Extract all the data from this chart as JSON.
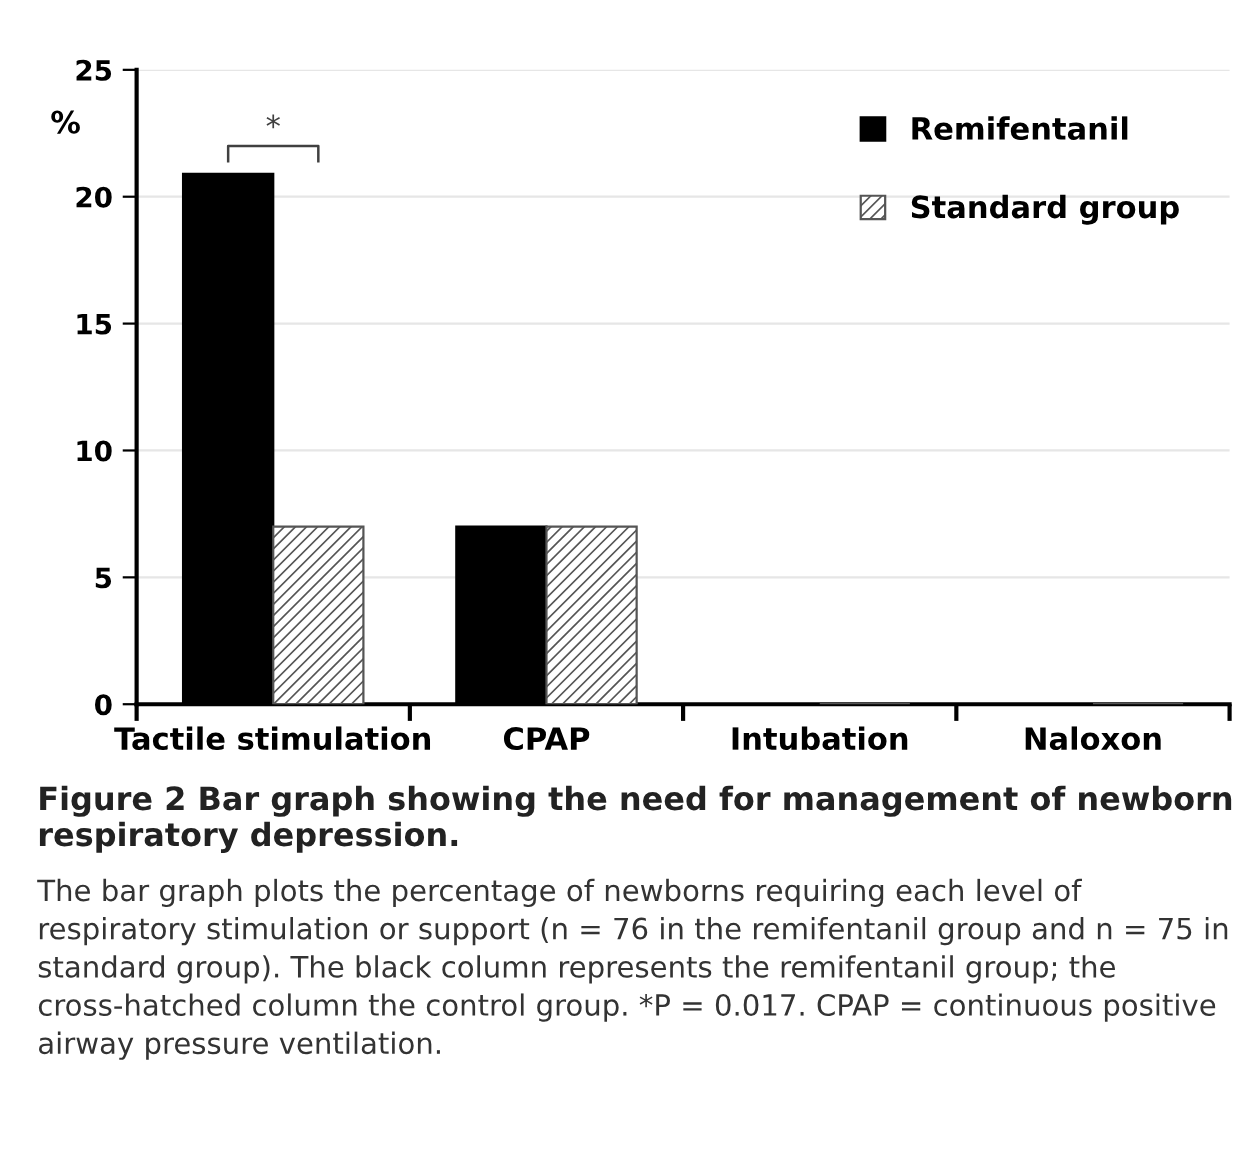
{
  "chart_data": {
    "type": "bar",
    "title": "Figure 2 Bar graph showing the need for management of newborn respiratory depression.",
    "ylabel": "%",
    "categories": [
      "Tactile stimulation",
      "CPAP",
      "Intubation",
      "Naloxon"
    ],
    "series": [
      {
        "name": "Remifentanil",
        "color": "#000000",
        "values": [
          20.9,
          7.0,
          0,
          0
        ]
      },
      {
        "name": "Standard group",
        "color": "#555555",
        "values": [
          7.0,
          7.0,
          0,
          0
        ]
      }
    ],
    "ylim": [
      0,
      25
    ],
    "yticks": [
      0,
      5,
      10,
      15,
      20,
      25
    ],
    "grid": "y",
    "legend": "top right",
    "annotations": [
      "*",
      "The bar graph plots the percentage of newborns requiring each level of respiratory stimulation or support (n = 76 in the remifentanil group and n = 75 in standard group). The black column represents the remifentanil group; the cross-hatched column the control group. *P = 0.017. CPAP = continuous positive airway pressure ventilation."
    ]
  }
}
